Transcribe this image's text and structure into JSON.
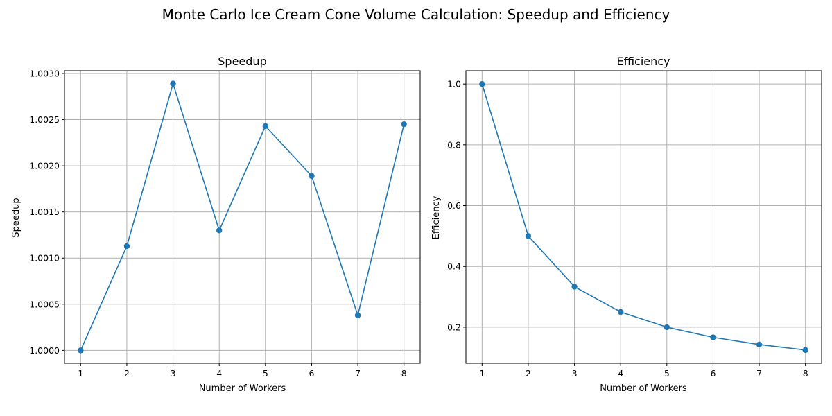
{
  "figure_title": "Monte Carlo Ice Cream Cone Volume Calculation: Speedup and Efficiency",
  "colors": {
    "series": "#1f77b4",
    "grid": "#b0b0b0",
    "axis": "#000000"
  },
  "chart_data": [
    {
      "type": "line",
      "title": "Speedup",
      "xlabel": "Number of Workers",
      "ylabel": "Speedup",
      "x": [
        1,
        2,
        3,
        4,
        5,
        6,
        7,
        8
      ],
      "series": [
        {
          "values": [
            1.0,
            1.00113,
            1.00289,
            1.0013,
            1.00243,
            1.00189,
            1.00038,
            1.00245
          ],
          "marker": "circle"
        }
      ],
      "xticks": [
        "1",
        "2",
        "3",
        "4",
        "5",
        "6",
        "7",
        "8"
      ],
      "yticks": [
        "1.0000",
        "1.0005",
        "1.0010",
        "1.0015",
        "1.0020",
        "1.0025",
        "1.0030"
      ],
      "xlim": [
        0.65,
        8.35
      ],
      "ylim": [
        0.99986,
        1.00303
      ],
      "grid": true,
      "legend": "none"
    },
    {
      "type": "line",
      "title": "Efficiency",
      "xlabel": "Number of Workers",
      "ylabel": "Efficiency",
      "x": [
        1,
        2,
        3,
        4,
        5,
        6,
        7,
        8
      ],
      "series": [
        {
          "values": [
            1.0,
            0.5,
            0.3333,
            0.25,
            0.2,
            0.1667,
            0.1429,
            0.125
          ],
          "marker": "circle"
        }
      ],
      "xticks": [
        "1",
        "2",
        "3",
        "4",
        "5",
        "6",
        "7",
        "8"
      ],
      "yticks": [
        "0.2",
        "0.4",
        "0.6",
        "0.8",
        "1.0"
      ],
      "xlim": [
        0.65,
        8.35
      ],
      "ylim": [
        0.0812,
        1.0437
      ],
      "grid": true,
      "legend": "none"
    }
  ]
}
